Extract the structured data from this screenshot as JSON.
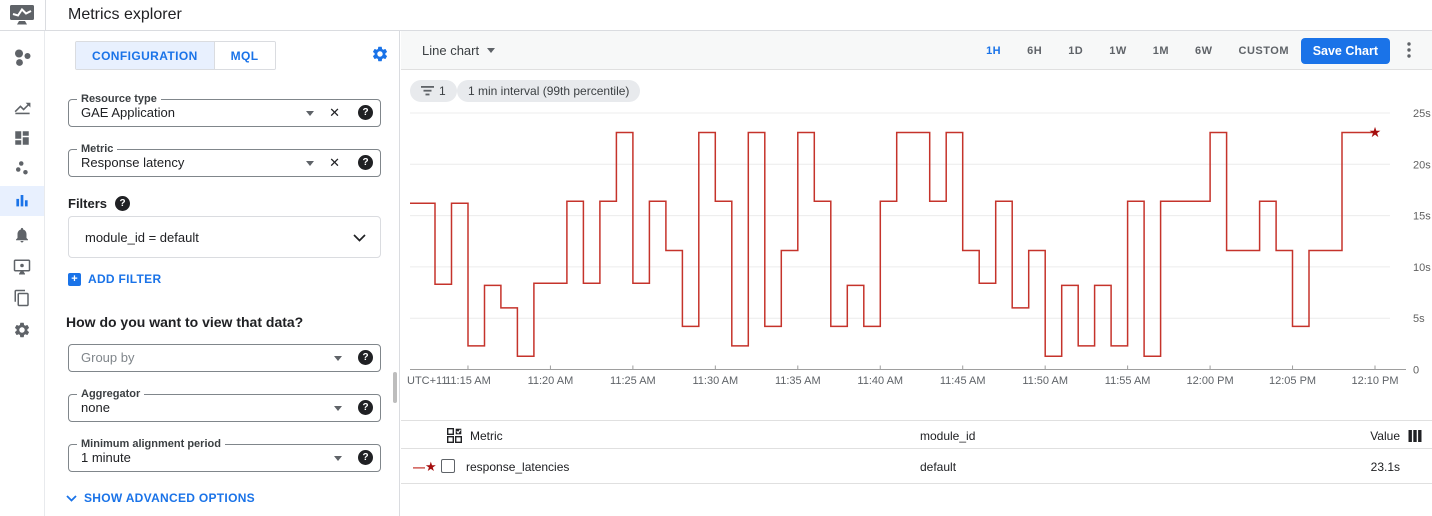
{
  "header": {
    "title": "Metrics explorer"
  },
  "sidebar": {
    "active_index": 4,
    "icons": [
      "monitoring-dots-icon",
      "trending-chart-icon",
      "dashboard-icon",
      "scatter-plot-icon",
      "bar-chart-icon",
      "bell-icon",
      "desktop-icon",
      "copy-icon",
      "gear-icon"
    ]
  },
  "config": {
    "tabs": [
      {
        "label": "CONFIGURATION"
      },
      {
        "label": "MQL"
      }
    ],
    "resource_type": {
      "label": "Resource type",
      "value": "GAE Application"
    },
    "metric": {
      "label": "Metric",
      "value": "Response latency"
    },
    "filters": {
      "heading": "Filters",
      "value": "module_id = default",
      "add_label": "ADD FILTER"
    },
    "view_heading": "How do you want to view that data?",
    "group_by": {
      "placeholder": "Group by"
    },
    "aggregator": {
      "label": "Aggregator",
      "value": "none"
    },
    "alignment": {
      "label": "Minimum alignment period",
      "value": "1 minute"
    },
    "advanced_label": "SHOW ADVANCED OPTIONS"
  },
  "chart_toolbar": {
    "chart_type_label": "Line chart",
    "time_ranges": [
      "1H",
      "6H",
      "1D",
      "1W",
      "1M",
      "6W",
      "CUSTOM"
    ],
    "active_range": "1H",
    "save_label": "Save Chart"
  },
  "chips": {
    "filter_count": "1",
    "interval_label": "1 min interval (99th percentile)"
  },
  "chart_data": {
    "type": "line",
    "style": "step-after",
    "x_start": "11:11 AM",
    "interval_minutes": 1,
    "series": [
      {
        "name": "response_latencies",
        "module_id": "default",
        "color": "#c5332b",
        "unit": "s",
        "values": [
          16.2,
          16.2,
          8.3,
          16.2,
          2.3,
          8.2,
          6.0,
          1.3,
          8.4,
          8.4,
          16.4,
          8.4,
          16.4,
          23.1,
          8.4,
          16.4,
          11.6,
          4.2,
          23.1,
          16.4,
          2.3,
          23.1,
          4.2,
          11.6,
          23.1,
          16.4,
          4.2,
          8.2,
          4.2,
          16.4,
          23.1,
          23.1,
          16.4,
          23.1,
          11.6,
          8.4,
          16.4,
          6.0,
          11.6,
          1.3,
          8.2,
          2.3,
          8.2,
          2.3,
          16.4,
          1.3,
          16.4,
          16.4,
          16.4,
          23.1,
          11.6,
          11.6,
          16.4,
          11.6,
          4.2,
          11.6,
          11.6,
          23.1,
          23.1,
          23.1
        ]
      }
    ],
    "x_axis": {
      "prefix_label": "UTC+11",
      "tick_labels": [
        "11:15 AM",
        "11:20 AM",
        "11:25 AM",
        "11:30 AM",
        "11:35 AM",
        "11:40 AM",
        "11:45 AM",
        "11:50 AM",
        "11:55 AM",
        "12:00 PM",
        "12:05 PM",
        "12:10 PM"
      ]
    },
    "y_axis": {
      "tick_labels": [
        "25s",
        "20s",
        "15s",
        "10s",
        "5s",
        "0"
      ],
      "min": 0,
      "max": 25
    },
    "end_marker": "star",
    "grid": true,
    "legend_position": "table-below"
  },
  "table": {
    "columns": [
      "Metric",
      "module_id",
      "Value"
    ],
    "rows": [
      {
        "metric": "response_latencies",
        "module_id": "default",
        "value": "23.1s"
      }
    ]
  },
  "colors": {
    "accent_blue": "#1a73e8",
    "line_red": "#c5332b",
    "star_red": "#a50e0e"
  }
}
